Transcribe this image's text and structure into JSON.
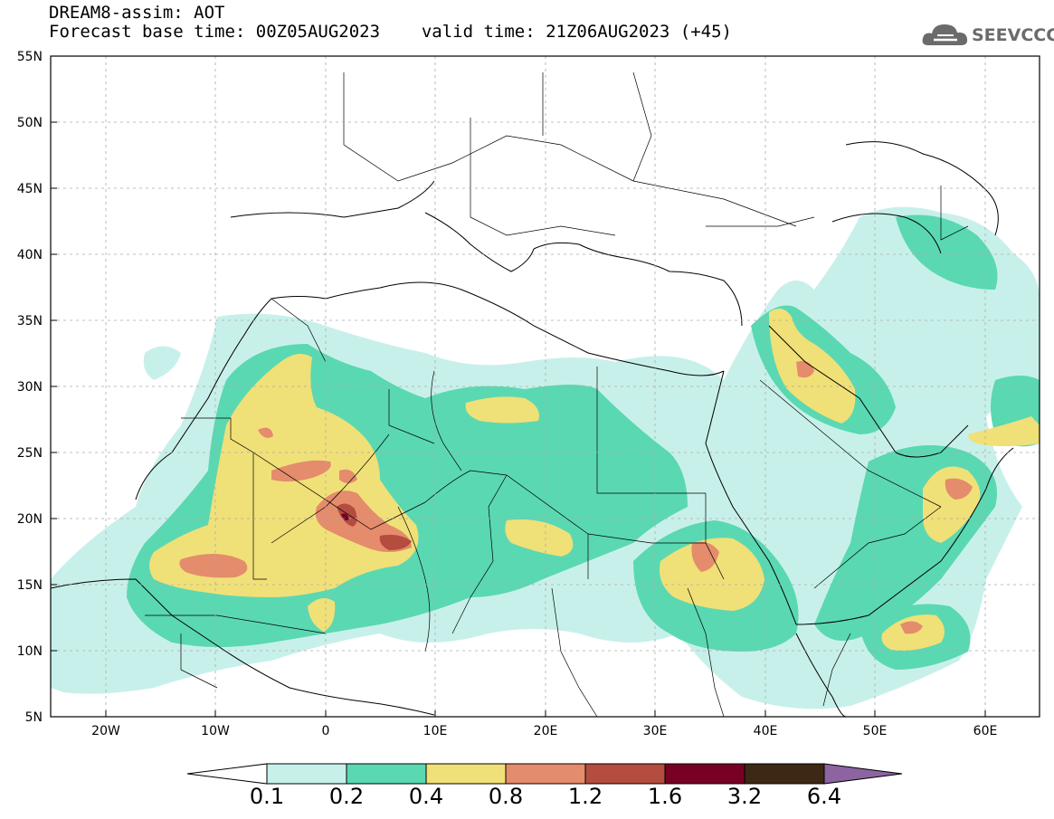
{
  "header": {
    "title_line1": "DREAM8-assim: AOT",
    "base_time_label": "Forecast base time: 00Z05AUG2023",
    "valid_time_label": "valid time: 21Z06AUG2023 (+45)"
  },
  "logo": {
    "text": "SEEVCCC",
    "icon": "cloud-icon"
  },
  "axes": {
    "lat_labels": [
      "55N",
      "50N",
      "45N",
      "40N",
      "35N",
      "30N",
      "25N",
      "20N",
      "15N",
      "10N",
      "5N"
    ],
    "lon_labels": [
      "20W",
      "10W",
      "0",
      "10E",
      "20E",
      "30E",
      "40E",
      "50E",
      "60E"
    ]
  },
  "colorbar": {
    "labels": [
      "0.1",
      "0.2",
      "0.4",
      "0.8",
      "1.2",
      "1.6",
      "3.2",
      "6.4"
    ],
    "colors": [
      "#c8f0ea",
      "#5ad8b2",
      "#f0e078",
      "#e48c6c",
      "#b44c40",
      "#780024",
      "#3c2814",
      "#8c64a0"
    ]
  }
}
